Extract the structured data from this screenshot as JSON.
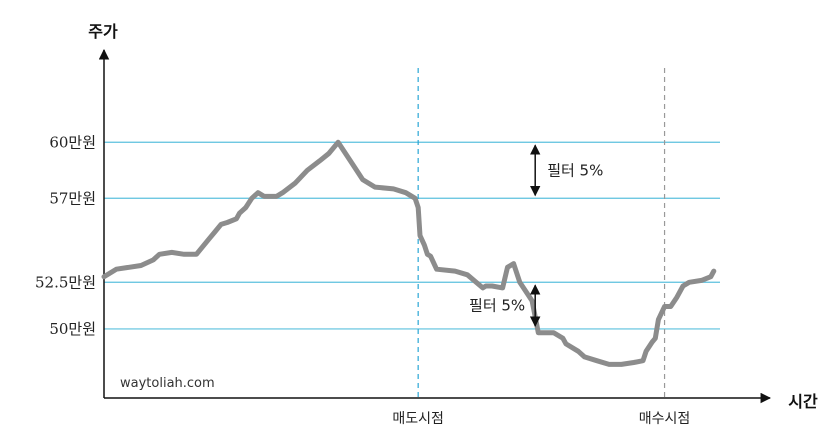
{
  "chart_data": {
    "type": "line",
    "xlabel": "시간",
    "ylabel": "주가",
    "y_ticks": [
      {
        "value": 60,
        "label": "60만원"
      },
      {
        "value": 57,
        "label": "57만원"
      },
      {
        "value": 52.5,
        "label": "52.5만원"
      },
      {
        "value": 50,
        "label": "50만원"
      }
    ],
    "ylim": [
      46.3,
      64.3
    ],
    "xlim": [
      0,
      100
    ],
    "grid_color": "#5bc0de",
    "line_color": "#8c8c8c",
    "events": [
      {
        "x": 51,
        "label": "매도시점",
        "color": "#2aa6d6"
      },
      {
        "x": 91,
        "label": "매수시점",
        "color": "#999999"
      }
    ],
    "filters": [
      {
        "label": "필터 5%",
        "x": 70,
        "from": 60,
        "to": 57
      },
      {
        "label": "필터 5%",
        "x": 70,
        "from": 52.5,
        "to": 50
      }
    ],
    "watermark": "waytoliah.com",
    "series": [
      {
        "x": [
          0,
          2,
          6,
          8,
          9,
          11,
          13,
          14,
          15,
          17,
          18,
          19,
          20,
          21.5,
          22,
          23,
          24,
          25,
          26,
          27.5,
          28,
          29,
          31,
          33,
          35,
          36.5,
          38,
          40,
          42,
          44,
          47,
          49,
          50.5,
          51,
          51.3,
          52,
          52.5,
          53,
          54,
          57,
          59,
          61.5,
          62,
          63,
          64.7,
          65.5,
          66.5,
          67.5,
          68.5,
          69.5,
          70.5,
          71,
          73,
          74.5,
          75,
          77,
          78,
          80,
          82,
          84,
          86,
          87.5,
          88,
          89,
          89.5,
          90,
          91,
          92,
          93,
          94,
          95,
          97,
          98.5,
          99
        ],
        "y": [
          52.8,
          53.2,
          53.4,
          53.7,
          54.0,
          54.1,
          54.0,
          54.0,
          54.0,
          54.8,
          55.2,
          55.6,
          55.7,
          55.9,
          56.2,
          56.5,
          57.0,
          57.3,
          57.1,
          57.1,
          57.1,
          57.3,
          57.8,
          58.5,
          59.0,
          59.4,
          60.0,
          59.0,
          58.0,
          57.6,
          57.5,
          57.3,
          57.0,
          56.5,
          55.0,
          54.5,
          54.0,
          53.9,
          53.2,
          53.1,
          52.9,
          52.2,
          52.3,
          52.3,
          52.2,
          53.3,
          53.5,
          52.5,
          52.0,
          51.5,
          49.8,
          49.8,
          49.8,
          49.5,
          49.2,
          48.8,
          48.5,
          48.3,
          48.1,
          48.1,
          48.2,
          48.3,
          48.8,
          49.3,
          49.5,
          50.5,
          51.2,
          51.2,
          51.7,
          52.3,
          52.5,
          52.6,
          52.8,
          53.1
        ]
      }
    ]
  }
}
